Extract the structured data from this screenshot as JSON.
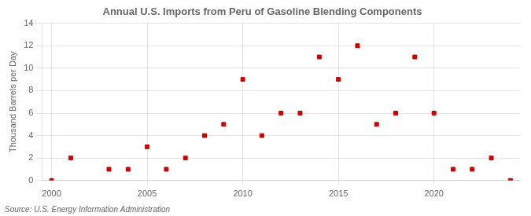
{
  "chart_data": {
    "type": "scatter",
    "title": "Annual U.S. Imports from Peru of Gasoline Blending Components",
    "ylabel": "Thousand Barrels per Day",
    "annotation": "Source: U.S. Energy Information Administration",
    "x": [
      2000,
      2001,
      2002,
      2003,
      2004,
      2005,
      2006,
      2007,
      2008,
      2009,
      2010,
      2011,
      2012,
      2013,
      2014,
      2015,
      2016,
      2017,
      2018,
      2019,
      2020,
      2021,
      2022,
      2023,
      2024
    ],
    "values": [
      0,
      2,
      null,
      1,
      1,
      3,
      1,
      2,
      4,
      5,
      9,
      4,
      6,
      6,
      11,
      9,
      12,
      5,
      6,
      11,
      6,
      1,
      1,
      2,
      0
    ],
    "color": "#cc0000",
    "marker": "square",
    "xlim": [
      1999.5,
      2024.5
    ],
    "xticks": [
      2000,
      2005,
      2010,
      2015,
      2020
    ],
    "ylim": [
      0,
      14
    ],
    "yticks": [
      0,
      2,
      4,
      6,
      8,
      10,
      12,
      14
    ],
    "grid": true
  }
}
